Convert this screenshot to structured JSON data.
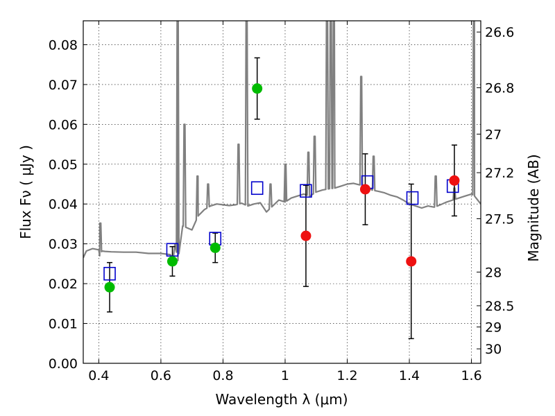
{
  "chart_data": {
    "type": "scatter",
    "xlabel": "Wavelength  λ (μm)",
    "ylabel": "Flux  Fν  ( μJy )",
    "ylabel_right": "Magnitude (AB)",
    "xlim": [
      0.35,
      1.63
    ],
    "ylim": [
      0.0,
      0.086
    ],
    "grid": true,
    "x_ticks": [
      0.4,
      0.6,
      0.8,
      1.0,
      1.2,
      1.4,
      1.6
    ],
    "x_tick_labels": [
      "0.4",
      "0.6",
      "0.8",
      "1",
      "1.2",
      "1.4",
      "1.6"
    ],
    "y_ticks": [
      0.0,
      0.01,
      0.02,
      0.03,
      0.04,
      0.05,
      0.06,
      0.07,
      0.08
    ],
    "y_tick_labels": [
      "0.00",
      "0.01",
      "0.02",
      "0.03",
      "0.04",
      "0.05",
      "0.06",
      "0.07",
      "0.08"
    ],
    "right_ticks": [
      {
        "mag": 26.6,
        "label": "26.6"
      },
      {
        "mag": 26.8,
        "label": "26.8"
      },
      {
        "mag": 27.0,
        "label": "27"
      },
      {
        "mag": 27.2,
        "label": "27.2"
      },
      {
        "mag": 27.5,
        "label": "27.5"
      },
      {
        "mag": 28.0,
        "label": "28"
      },
      {
        "mag": 28.5,
        "label": "28.5"
      },
      {
        "mag": 29.0,
        "label": "29"
      },
      {
        "mag": 30.0,
        "label": "30"
      }
    ],
    "series": [
      {
        "marker": "circle",
        "color": "#00bb00",
        "points": [
          {
            "x": 0.435,
            "y": 0.0191,
            "err": 0.0062
          },
          {
            "x": 0.637,
            "y": 0.0256,
            "err": 0.0037
          },
          {
            "x": 0.775,
            "y": 0.029,
            "err": 0.0037
          },
          {
            "x": 0.91,
            "y": 0.069,
            "err": 0.0077
          }
        ]
      },
      {
        "marker": "circle",
        "color": "#ee1111",
        "points": [
          {
            "x": 1.067,
            "y": 0.032,
            "err": 0.0127
          },
          {
            "x": 1.258,
            "y": 0.0437,
            "err": 0.0089
          },
          {
            "x": 1.406,
            "y": 0.0256,
            "err": 0.0194
          },
          {
            "x": 1.545,
            "y": 0.0459,
            "err": 0.0089
          }
        ]
      },
      {
        "marker": "open-square",
        "color": "#0000cc",
        "points": [
          {
            "x": 0.435,
            "y": 0.0225
          },
          {
            "x": 0.637,
            "y": 0.0285
          },
          {
            "x": 0.775,
            "y": 0.0313
          },
          {
            "x": 0.91,
            "y": 0.044
          },
          {
            "x": 1.067,
            "y": 0.0433
          },
          {
            "x": 1.265,
            "y": 0.0455
          },
          {
            "x": 1.41,
            "y": 0.0415
          },
          {
            "x": 1.54,
            "y": 0.0445
          }
        ]
      }
    ],
    "model_spectrum": {
      "color": "#808080",
      "continuum": [
        [
          0.35,
          0.0265
        ],
        [
          0.36,
          0.0282
        ],
        [
          0.38,
          0.0288
        ],
        [
          0.4,
          0.0285
        ],
        [
          0.403,
          0.027
        ],
        [
          0.41,
          0.0282
        ],
        [
          0.42,
          0.0281
        ],
        [
          0.44,
          0.028
        ],
        [
          0.48,
          0.0279
        ],
        [
          0.52,
          0.0279
        ],
        [
          0.56,
          0.0276
        ],
        [
          0.6,
          0.0276
        ],
        [
          0.63,
          0.0273
        ],
        [
          0.64,
          0.0263
        ],
        [
          0.645,
          0.03
        ],
        [
          0.655,
          0.0258
        ],
        [
          0.67,
          0.0345
        ],
        [
          0.7,
          0.0335
        ],
        [
          0.72,
          0.037
        ],
        [
          0.74,
          0.0386
        ],
        [
          0.76,
          0.0395
        ],
        [
          0.78,
          0.04
        ],
        [
          0.8,
          0.0398
        ],
        [
          0.82,
          0.0396
        ],
        [
          0.84,
          0.0398
        ],
        [
          0.86,
          0.0402
        ],
        [
          0.88,
          0.0395
        ],
        [
          0.9,
          0.04
        ],
        [
          0.92,
          0.0403
        ],
        [
          0.94,
          0.038
        ],
        [
          0.96,
          0.0395
        ],
        [
          0.98,
          0.041
        ],
        [
          1.0,
          0.0405
        ],
        [
          1.02,
          0.0415
        ],
        [
          1.04,
          0.042
        ],
        [
          1.06,
          0.0425
        ],
        [
          1.08,
          0.042
        ],
        [
          1.1,
          0.043
        ],
        [
          1.12,
          0.0435
        ],
        [
          1.14,
          0.0438
        ],
        [
          1.16,
          0.044
        ],
        [
          1.18,
          0.0445
        ],
        [
          1.2,
          0.045
        ],
        [
          1.22,
          0.0452
        ],
        [
          1.24,
          0.0448
        ],
        [
          1.26,
          0.0445
        ],
        [
          1.28,
          0.0435
        ],
        [
          1.3,
          0.0432
        ],
        [
          1.32,
          0.0428
        ],
        [
          1.34,
          0.0422
        ],
        [
          1.36,
          0.0418
        ],
        [
          1.38,
          0.041
        ],
        [
          1.4,
          0.04
        ],
        [
          1.42,
          0.0395
        ],
        [
          1.44,
          0.039
        ],
        [
          1.46,
          0.0395
        ],
        [
          1.48,
          0.0392
        ],
        [
          1.5,
          0.0398
        ],
        [
          1.52,
          0.0405
        ],
        [
          1.54,
          0.041
        ],
        [
          1.56,
          0.0415
        ],
        [
          1.58,
          0.042
        ],
        [
          1.6,
          0.0425
        ],
        [
          1.61,
          0.042
        ],
        [
          1.63,
          0.04
        ]
      ],
      "emission_lines": [
        {
          "x": 0.405,
          "peak": 0.0352
        },
        {
          "x": 0.654,
          "peak": 0.09
        },
        {
          "x": 0.676,
          "peak": 0.06
        },
        {
          "x": 0.718,
          "peak": 0.047
        },
        {
          "x": 0.752,
          "peak": 0.045
        },
        {
          "x": 0.85,
          "peak": 0.055
        },
        {
          "x": 0.876,
          "peak": 0.09
        },
        {
          "x": 0.953,
          "peak": 0.045
        },
        {
          "x": 1.001,
          "peak": 0.05
        },
        {
          "x": 1.075,
          "peak": 0.053
        },
        {
          "x": 1.095,
          "peak": 0.057
        },
        {
          "x": 1.135,
          "peak": 0.09
        },
        {
          "x": 1.147,
          "peak": 0.09
        },
        {
          "x": 1.157,
          "peak": 0.09
        },
        {
          "x": 1.245,
          "peak": 0.072
        },
        {
          "x": 1.285,
          "peak": 0.052
        },
        {
          "x": 1.485,
          "peak": 0.047
        },
        {
          "x": 1.545,
          "peak": 0.044
        },
        {
          "x": 1.608,
          "peak": 0.09
        }
      ]
    }
  }
}
